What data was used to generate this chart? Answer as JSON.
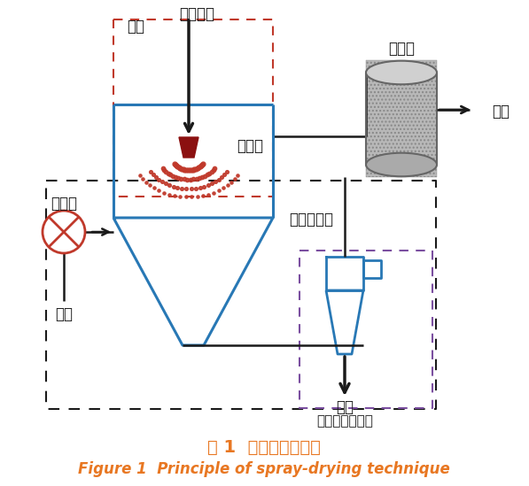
{
  "title_cn": "图 1  喷雾干燥的原理",
  "title_en": "Figure 1  Principle of spray-drying technique",
  "title_cn_color": "#e87722",
  "title_en_color": "#e87722",
  "bg_color": "#ffffff",
  "blue_color": "#2878b5",
  "red_color": "#c0392b",
  "purple_color": "#7b4fa0",
  "black_color": "#1a1a1a",
  "gray_fill": "#b0b0b0",
  "gray_edge": "#666666",
  "labels": {
    "wuhua": "雾化",
    "yeti": "液体物料",
    "wuhuaqi": "雾化器",
    "jiareqi": "加热器",
    "qiti_left": "气体",
    "wudi_ganzao": "雾滴的干燥",
    "guolvqi": "过滤器",
    "qiti_right": "气体",
    "chanpin": "产品",
    "keli": "颗粒收集与分离"
  }
}
